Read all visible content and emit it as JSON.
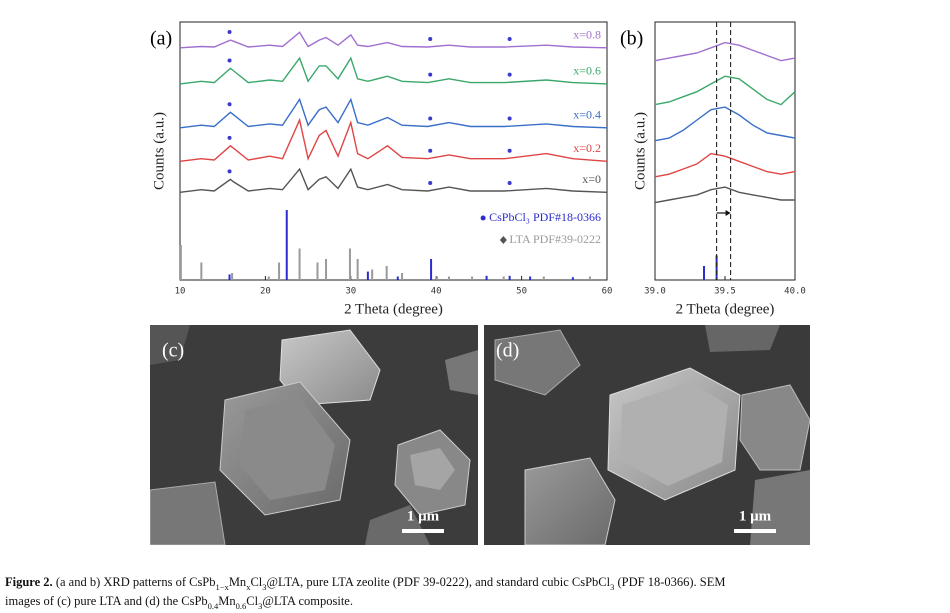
{
  "chart_data": [
    {
      "type": "line",
      "label": "(a)",
      "xlabel": "2 Theta (degree)",
      "ylabel": "Counts (a.u.)",
      "xlim": [
        10,
        60
      ],
      "xticks": [
        10,
        20,
        30,
        40,
        50,
        60
      ],
      "ylim": [
        0,
        100
      ],
      "x": [
        10,
        12.5,
        14,
        15.9,
        16.3,
        18,
        20.5,
        22,
        24,
        25,
        26.3,
        27.1,
        28.5,
        30,
        30.8,
        32,
        34.3,
        36,
        39,
        41.5,
        44,
        48,
        52.9,
        56,
        60
      ],
      "series": [
        {
          "name": "x=0",
          "color": "#555555",
          "values": [
            34,
            35,
            34.5,
            39,
            38,
            34.5,
            35.5,
            35,
            43,
            35,
            39,
            40,
            35.5,
            43,
            36,
            35,
            37,
            35,
            34.5,
            36,
            34.5,
            34.5,
            35.5,
            34.5,
            34
          ]
        },
        {
          "name": "x=0.2",
          "color": "#e04545",
          "values": [
            46,
            47,
            46.5,
            52,
            51,
            46.5,
            48,
            47,
            62,
            47,
            56,
            58,
            48,
            61,
            49,
            47,
            52,
            47.5,
            47,
            48.5,
            47,
            47,
            49,
            47,
            46
          ]
        },
        {
          "name": "x=0.4",
          "color": "#3a6fc8",
          "values": [
            59,
            60,
            59.5,
            65,
            64,
            59.5,
            60.5,
            60,
            70,
            60,
            66,
            67,
            61,
            70,
            61,
            60,
            63,
            60,
            59.5,
            61,
            59.5,
            59.5,
            60.5,
            59.5,
            59
          ]
        },
        {
          "name": "x=0.6",
          "color": "#3aa86a",
          "values": [
            76,
            77,
            76.5,
            82,
            81,
            76.5,
            77.5,
            77,
            86,
            77,
            83,
            83,
            78,
            86,
            78,
            77,
            79,
            77,
            76.5,
            78,
            76.5,
            76.5,
            77.5,
            76.5,
            76
          ]
        },
        {
          "name": "x=0.8",
          "color": "#a070d0",
          "values": [
            90,
            90.5,
            90.3,
            93,
            92.5,
            90.3,
            91,
            90.5,
            96,
            90.5,
            93,
            94,
            91,
            95,
            91,
            90.5,
            92,
            90.5,
            90.3,
            91,
            90.3,
            90.3,
            91,
            90.3,
            90
          ]
        }
      ],
      "marker_x": [
        15.8,
        39.3,
        48.6
      ],
      "ref_ylim": [
        0,
        100
      ],
      "references": [
        {
          "name": "CsPbCl₃ PDF#18-0366",
          "color": "#2b2bd0",
          "x": [
            15.8,
            22.5,
            32,
            35.5,
            39.4,
            45.9,
            48.6,
            51,
            56
          ],
          "values": [
            8,
            100,
            12,
            5,
            30,
            6,
            6,
            5,
            4
          ]
        },
        {
          "name": "LTA PDF#39-0222",
          "color": "#9a9a9a",
          "x": [
            10.1,
            12.5,
            16.1,
            20.4,
            21.6,
            24,
            26.1,
            27.1,
            29.9,
            30.8,
            32.5,
            34.2,
            36,
            40.1,
            41.5,
            44.2,
            47.9,
            52.6,
            58
          ],
          "values": [
            50,
            25,
            10,
            5,
            25,
            45,
            25,
            30,
            45,
            30,
            15,
            20,
            10,
            5,
            5,
            5,
            5,
            5,
            5
          ]
        }
      ]
    },
    {
      "type": "line",
      "label": "(b)",
      "xlabel": "2 Theta (degree)",
      "ylabel": "Counts (a.u.)",
      "xlim": [
        39,
        40
      ],
      "xticks": [
        {
          "value": 39,
          "label": "39.0"
        },
        {
          "value": 39.5,
          "label": "39.5"
        },
        {
          "value": 40,
          "label": "40.0"
        }
      ],
      "ylim": [
        0,
        100
      ],
      "x": [
        39,
        39.1,
        39.2,
        39.3,
        39.4,
        39.5,
        39.6,
        39.7,
        39.8,
        39.9,
        40
      ],
      "series": [
        {
          "name": "x=0",
          "color": "#555555",
          "values": [
            30,
            31,
            32,
            33,
            35,
            36,
            34,
            33,
            32,
            31,
            31
          ]
        },
        {
          "name": "x=0.2",
          "color": "#e04545",
          "values": [
            40,
            41,
            43,
            45,
            49,
            48,
            46,
            44,
            42,
            41,
            42
          ]
        },
        {
          "name": "x=0.4",
          "color": "#3a6fc8",
          "values": [
            54,
            55,
            58,
            62,
            66,
            67,
            64,
            60,
            57,
            56,
            55
          ]
        },
        {
          "name": "x=0.6",
          "color": "#3aa86a",
          "values": [
            68,
            69,
            71,
            73,
            76,
            79,
            78,
            74,
            70,
            68,
            73
          ]
        },
        {
          "name": "x=0.8",
          "color": "#a070d0",
          "values": [
            85,
            86,
            87,
            88,
            90,
            92,
            91,
            89,
            87,
            85,
            86
          ]
        }
      ],
      "vertical_lines": [
        39.44,
        39.54
      ],
      "ref_ylim": [
        0,
        100
      ],
      "references": [
        {
          "name": "CsPbCl₃ PDF#18-0366",
          "color": "#2b2bd0",
          "x": [
            39.35,
            39.44
          ],
          "values": [
            20,
            35
          ]
        }
      ]
    }
  ],
  "images": [
    {
      "label": "(c)",
      "scale": "1 μm"
    },
    {
      "label": "(d)",
      "scale": "1 μm"
    }
  ],
  "caption": {
    "label": "Figure 2.",
    "lines": [
      [
        {
          "text": " (a and b) XRD patterns of CsPb"
        },
        {
          "text": "1−x",
          "sub": true
        },
        {
          "text": "Mn"
        },
        {
          "text": "x",
          "sub": true
        },
        {
          "text": "Cl"
        },
        {
          "text": "3",
          "sub": true
        },
        {
          "text": "@LTA, pure LTA zeolite (PDF 39-0222), and standard cubic CsPbCl"
        },
        {
          "text": "3",
          "sub": true
        },
        {
          "text": " (PDF 18-0366). SEM"
        }
      ],
      [
        {
          "text": "images of (c) pure LTA and (d) the CsPb"
        },
        {
          "text": "0.4",
          "sub": true
        },
        {
          "text": "Mn"
        },
        {
          "text": "0.6",
          "sub": true
        },
        {
          "text": "Cl"
        },
        {
          "text": "3",
          "sub": true
        },
        {
          "text": "@LTA composite."
        }
      ]
    ]
  }
}
